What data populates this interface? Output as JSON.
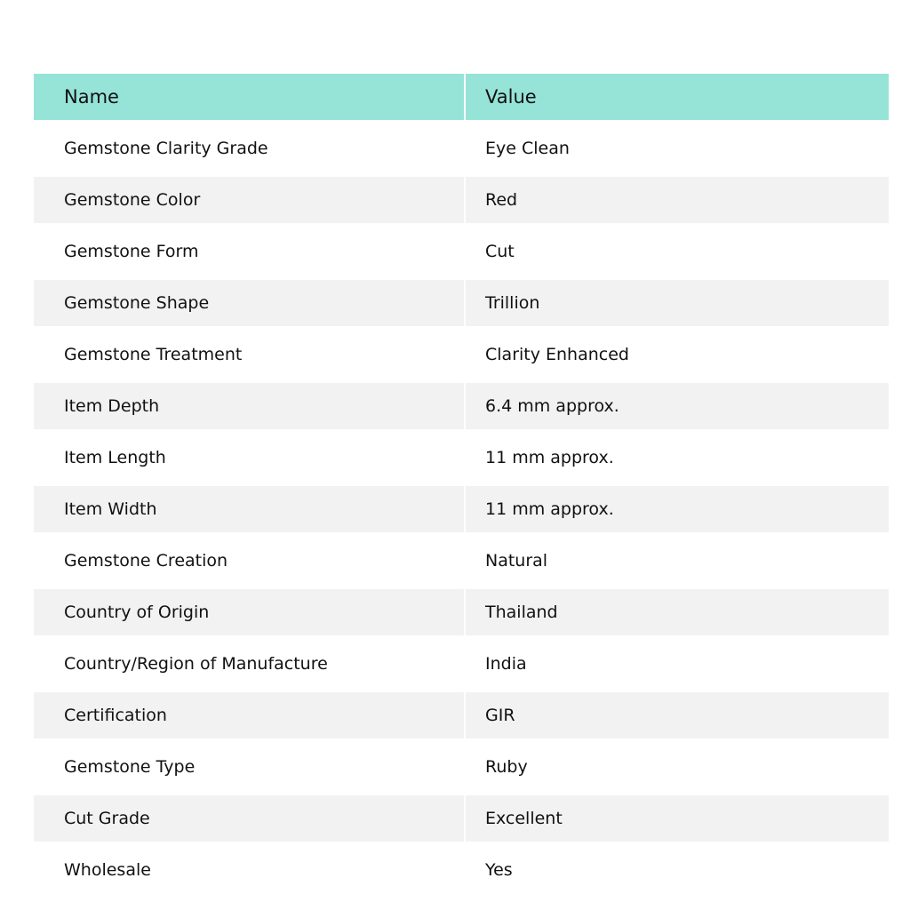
{
  "table": {
    "header_color": "#96e3d8",
    "stripe_color": "#f2f2f2",
    "columns": [
      "Name",
      "Value"
    ],
    "rows": [
      {
        "name": "Gemstone Clarity Grade",
        "value": "Eye Clean"
      },
      {
        "name": "Gemstone Color",
        "value": "Red"
      },
      {
        "name": "Gemstone Form",
        "value": "Cut"
      },
      {
        "name": "Gemstone Shape",
        "value": "Trillion"
      },
      {
        "name": "Gemstone Treatment",
        "value": "Clarity Enhanced"
      },
      {
        "name": "Item Depth",
        "value": "6.4 mm approx."
      },
      {
        "name": "Item Length",
        "value": "11 mm approx."
      },
      {
        "name": "Item Width",
        "value": "11 mm approx."
      },
      {
        "name": "Gemstone Creation",
        "value": "Natural"
      },
      {
        "name": "Country of Origin",
        "value": "Thailand"
      },
      {
        "name": "Country/Region of Manufacture",
        "value": "India"
      },
      {
        "name": "Certification",
        "value": "GIR"
      },
      {
        "name": "Gemstone Type",
        "value": "Ruby"
      },
      {
        "name": "Cut Grade",
        "value": "Excellent"
      },
      {
        "name": "Wholesale",
        "value": "Yes"
      }
    ]
  }
}
